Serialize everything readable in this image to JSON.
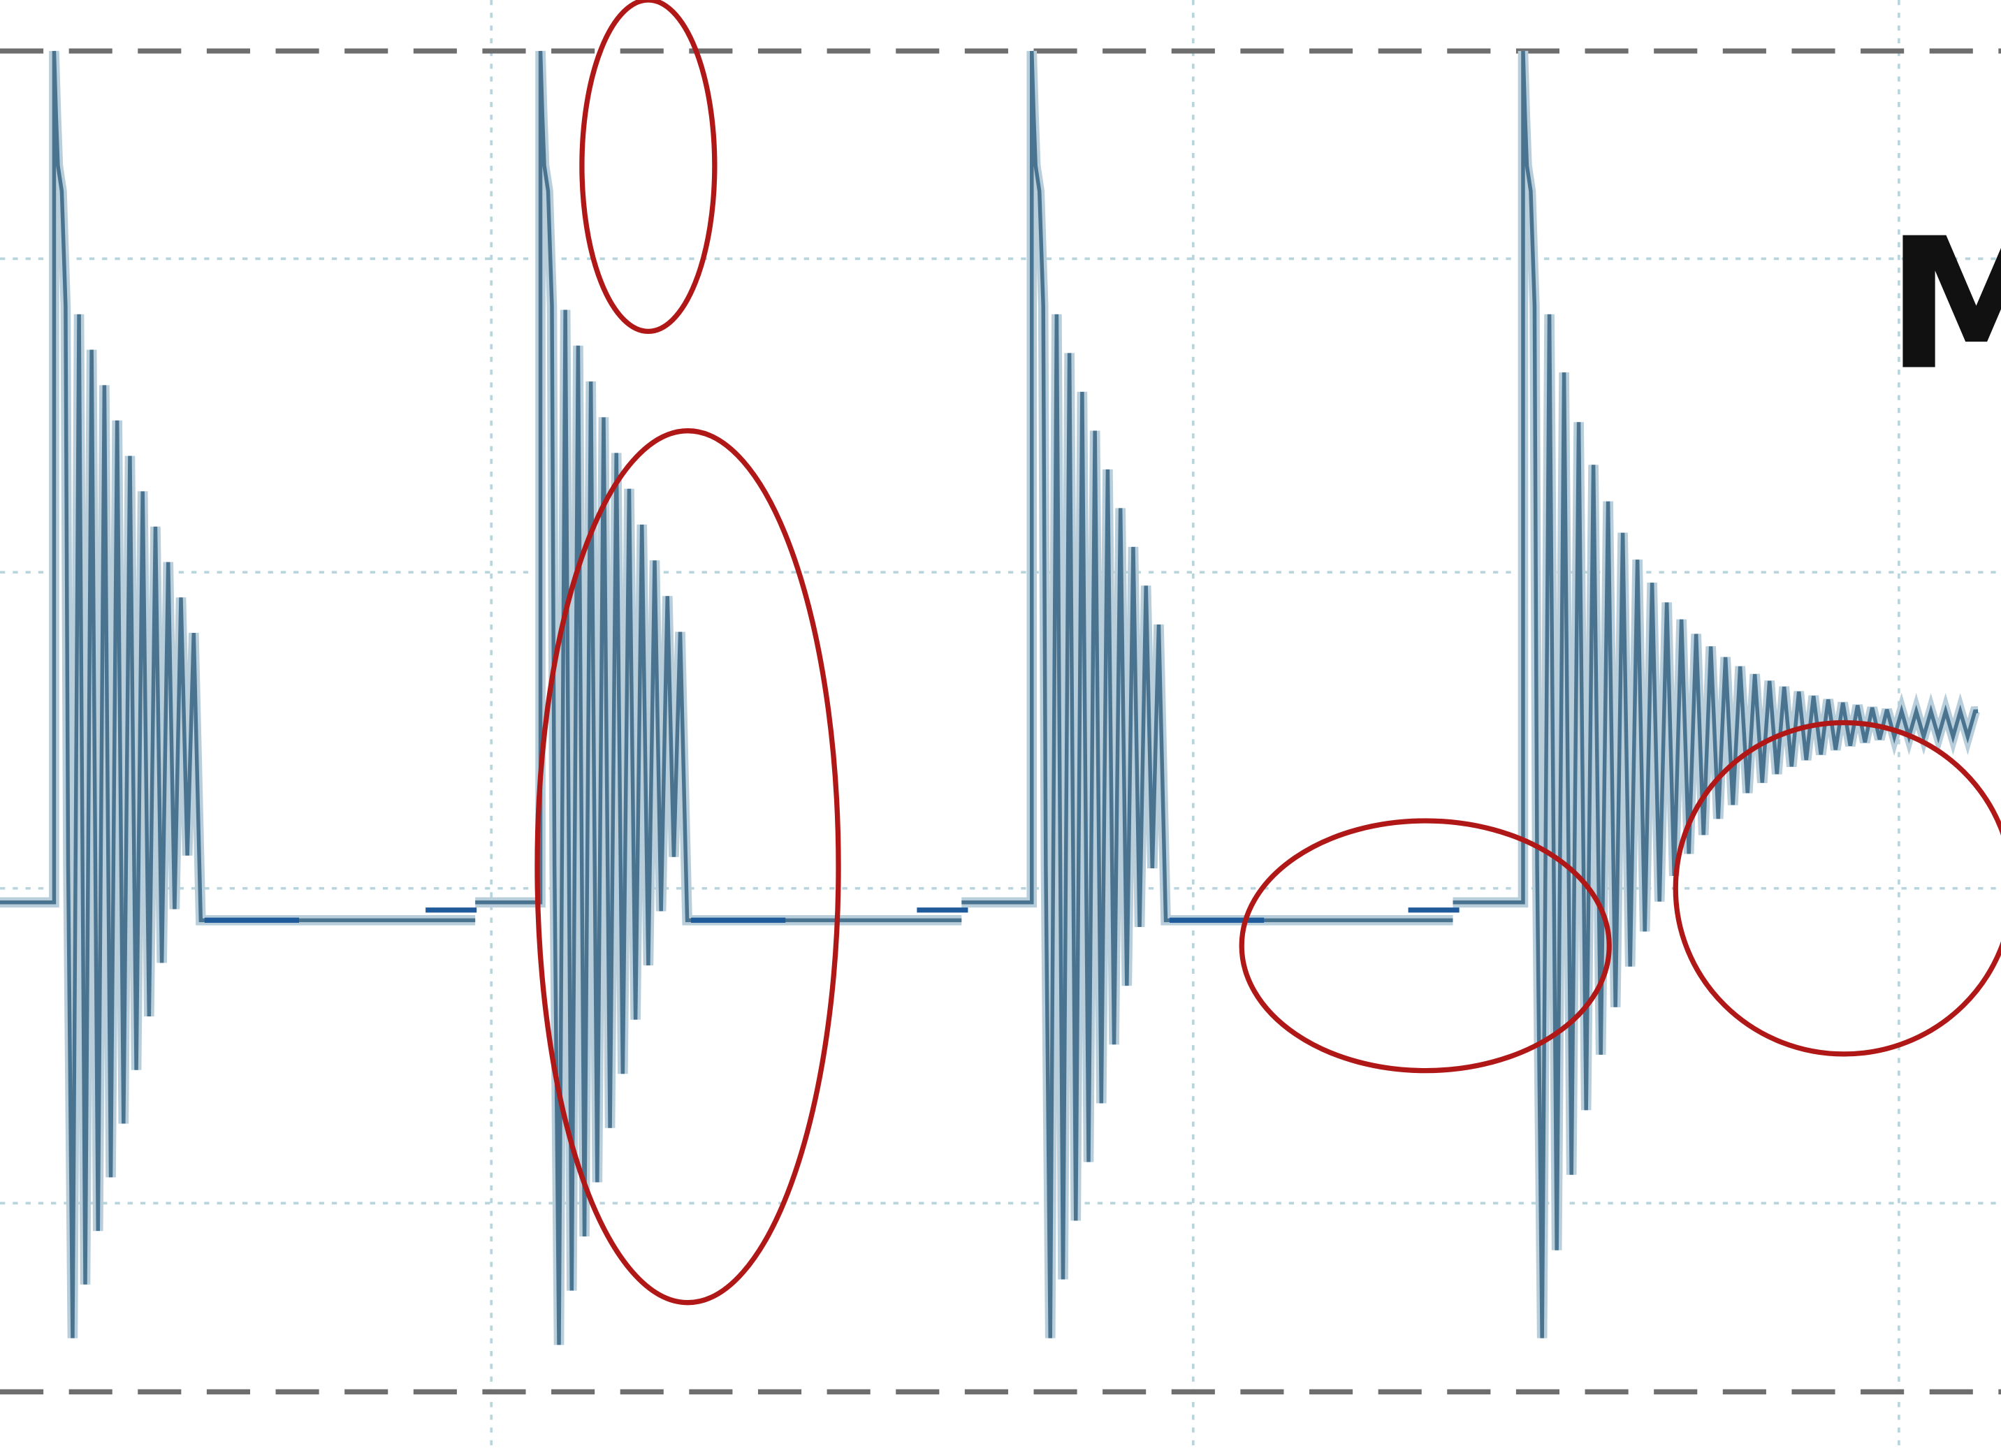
{
  "chart_data": {
    "type": "line",
    "label": "M",
    "grid": true,
    "ylim": [
      -1,
      1
    ],
    "xlim": [
      0,
      4
    ],
    "reference_lines": [
      1,
      -1
    ],
    "colors": {
      "signal": "#4a7390",
      "signal_halo": "#b8cedb",
      "noise": "#1f5a9a",
      "limit_lines": "#6e6e6e",
      "annotations": "#b01818"
    },
    "bursts": [
      {
        "start": 0.11,
        "peak": 1.0,
        "ringing_amplitude": 0.92,
        "ringing_cycles": 10,
        "tail": "flat-noise"
      },
      {
        "start": 1.1,
        "peak": 1.0,
        "ringing_amplitude": 0.93,
        "ringing_cycles": 10,
        "tail": "flat-noise"
      },
      {
        "start": 2.1,
        "peak": 1.0,
        "ringing_amplitude": 0.92,
        "ringing_cycles": 9,
        "tail": "flat-noise"
      },
      {
        "start": 3.1,
        "peak": 1.0,
        "ringing_amplitude": 0.92,
        "ringing_cycles": 30,
        "tail": "sustained-oscillation"
      }
    ],
    "annotations": [
      {
        "shape": "ellipse",
        "target": "burst-2-peak"
      },
      {
        "shape": "ellipse",
        "target": "burst-2-ringing"
      },
      {
        "shape": "ellipse",
        "target": "burst-3-tail"
      },
      {
        "shape": "ellipse",
        "target": "burst-4-tail"
      }
    ]
  }
}
